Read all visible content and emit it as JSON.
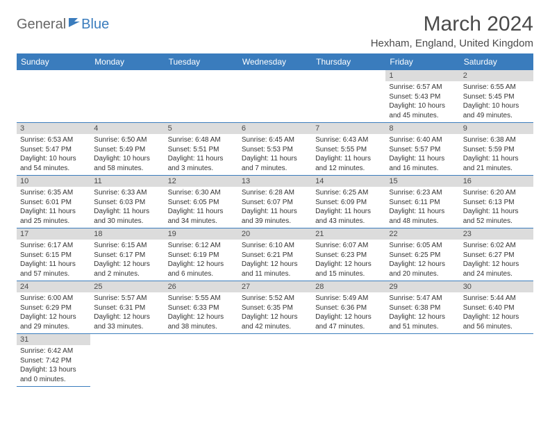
{
  "logo": {
    "general": "General",
    "blue": "Blue"
  },
  "title": "March 2024",
  "location": "Hexham, England, United Kingdom",
  "weekdays": [
    "Sunday",
    "Monday",
    "Tuesday",
    "Wednesday",
    "Thursday",
    "Friday",
    "Saturday"
  ],
  "colors": {
    "header_bg": "#3a7cbd",
    "header_text": "#ffffff",
    "daynum_bg": "#dcdcdc",
    "border": "#3a7cbd"
  },
  "weeks": [
    [
      null,
      null,
      null,
      null,
      null,
      {
        "num": "1",
        "sunrise": "Sunrise: 6:57 AM",
        "sunset": "Sunset: 5:43 PM",
        "daylight": "Daylight: 10 hours and 45 minutes."
      },
      {
        "num": "2",
        "sunrise": "Sunrise: 6:55 AM",
        "sunset": "Sunset: 5:45 PM",
        "daylight": "Daylight: 10 hours and 49 minutes."
      }
    ],
    [
      {
        "num": "3",
        "sunrise": "Sunrise: 6:53 AM",
        "sunset": "Sunset: 5:47 PM",
        "daylight": "Daylight: 10 hours and 54 minutes."
      },
      {
        "num": "4",
        "sunrise": "Sunrise: 6:50 AM",
        "sunset": "Sunset: 5:49 PM",
        "daylight": "Daylight: 10 hours and 58 minutes."
      },
      {
        "num": "5",
        "sunrise": "Sunrise: 6:48 AM",
        "sunset": "Sunset: 5:51 PM",
        "daylight": "Daylight: 11 hours and 3 minutes."
      },
      {
        "num": "6",
        "sunrise": "Sunrise: 6:45 AM",
        "sunset": "Sunset: 5:53 PM",
        "daylight": "Daylight: 11 hours and 7 minutes."
      },
      {
        "num": "7",
        "sunrise": "Sunrise: 6:43 AM",
        "sunset": "Sunset: 5:55 PM",
        "daylight": "Daylight: 11 hours and 12 minutes."
      },
      {
        "num": "8",
        "sunrise": "Sunrise: 6:40 AM",
        "sunset": "Sunset: 5:57 PM",
        "daylight": "Daylight: 11 hours and 16 minutes."
      },
      {
        "num": "9",
        "sunrise": "Sunrise: 6:38 AM",
        "sunset": "Sunset: 5:59 PM",
        "daylight": "Daylight: 11 hours and 21 minutes."
      }
    ],
    [
      {
        "num": "10",
        "sunrise": "Sunrise: 6:35 AM",
        "sunset": "Sunset: 6:01 PM",
        "daylight": "Daylight: 11 hours and 25 minutes."
      },
      {
        "num": "11",
        "sunrise": "Sunrise: 6:33 AM",
        "sunset": "Sunset: 6:03 PM",
        "daylight": "Daylight: 11 hours and 30 minutes."
      },
      {
        "num": "12",
        "sunrise": "Sunrise: 6:30 AM",
        "sunset": "Sunset: 6:05 PM",
        "daylight": "Daylight: 11 hours and 34 minutes."
      },
      {
        "num": "13",
        "sunrise": "Sunrise: 6:28 AM",
        "sunset": "Sunset: 6:07 PM",
        "daylight": "Daylight: 11 hours and 39 minutes."
      },
      {
        "num": "14",
        "sunrise": "Sunrise: 6:25 AM",
        "sunset": "Sunset: 6:09 PM",
        "daylight": "Daylight: 11 hours and 43 minutes."
      },
      {
        "num": "15",
        "sunrise": "Sunrise: 6:23 AM",
        "sunset": "Sunset: 6:11 PM",
        "daylight": "Daylight: 11 hours and 48 minutes."
      },
      {
        "num": "16",
        "sunrise": "Sunrise: 6:20 AM",
        "sunset": "Sunset: 6:13 PM",
        "daylight": "Daylight: 11 hours and 52 minutes."
      }
    ],
    [
      {
        "num": "17",
        "sunrise": "Sunrise: 6:17 AM",
        "sunset": "Sunset: 6:15 PM",
        "daylight": "Daylight: 11 hours and 57 minutes."
      },
      {
        "num": "18",
        "sunrise": "Sunrise: 6:15 AM",
        "sunset": "Sunset: 6:17 PM",
        "daylight": "Daylight: 12 hours and 2 minutes."
      },
      {
        "num": "19",
        "sunrise": "Sunrise: 6:12 AM",
        "sunset": "Sunset: 6:19 PM",
        "daylight": "Daylight: 12 hours and 6 minutes."
      },
      {
        "num": "20",
        "sunrise": "Sunrise: 6:10 AM",
        "sunset": "Sunset: 6:21 PM",
        "daylight": "Daylight: 12 hours and 11 minutes."
      },
      {
        "num": "21",
        "sunrise": "Sunrise: 6:07 AM",
        "sunset": "Sunset: 6:23 PM",
        "daylight": "Daylight: 12 hours and 15 minutes."
      },
      {
        "num": "22",
        "sunrise": "Sunrise: 6:05 AM",
        "sunset": "Sunset: 6:25 PM",
        "daylight": "Daylight: 12 hours and 20 minutes."
      },
      {
        "num": "23",
        "sunrise": "Sunrise: 6:02 AM",
        "sunset": "Sunset: 6:27 PM",
        "daylight": "Daylight: 12 hours and 24 minutes."
      }
    ],
    [
      {
        "num": "24",
        "sunrise": "Sunrise: 6:00 AM",
        "sunset": "Sunset: 6:29 PM",
        "daylight": "Daylight: 12 hours and 29 minutes."
      },
      {
        "num": "25",
        "sunrise": "Sunrise: 5:57 AM",
        "sunset": "Sunset: 6:31 PM",
        "daylight": "Daylight: 12 hours and 33 minutes."
      },
      {
        "num": "26",
        "sunrise": "Sunrise: 5:55 AM",
        "sunset": "Sunset: 6:33 PM",
        "daylight": "Daylight: 12 hours and 38 minutes."
      },
      {
        "num": "27",
        "sunrise": "Sunrise: 5:52 AM",
        "sunset": "Sunset: 6:35 PM",
        "daylight": "Daylight: 12 hours and 42 minutes."
      },
      {
        "num": "28",
        "sunrise": "Sunrise: 5:49 AM",
        "sunset": "Sunset: 6:36 PM",
        "daylight": "Daylight: 12 hours and 47 minutes."
      },
      {
        "num": "29",
        "sunrise": "Sunrise: 5:47 AM",
        "sunset": "Sunset: 6:38 PM",
        "daylight": "Daylight: 12 hours and 51 minutes."
      },
      {
        "num": "30",
        "sunrise": "Sunrise: 5:44 AM",
        "sunset": "Sunset: 6:40 PM",
        "daylight": "Daylight: 12 hours and 56 minutes."
      }
    ],
    [
      {
        "num": "31",
        "sunrise": "Sunrise: 6:42 AM",
        "sunset": "Sunset: 7:42 PM",
        "daylight": "Daylight: 13 hours and 0 minutes."
      },
      null,
      null,
      null,
      null,
      null,
      null
    ]
  ]
}
